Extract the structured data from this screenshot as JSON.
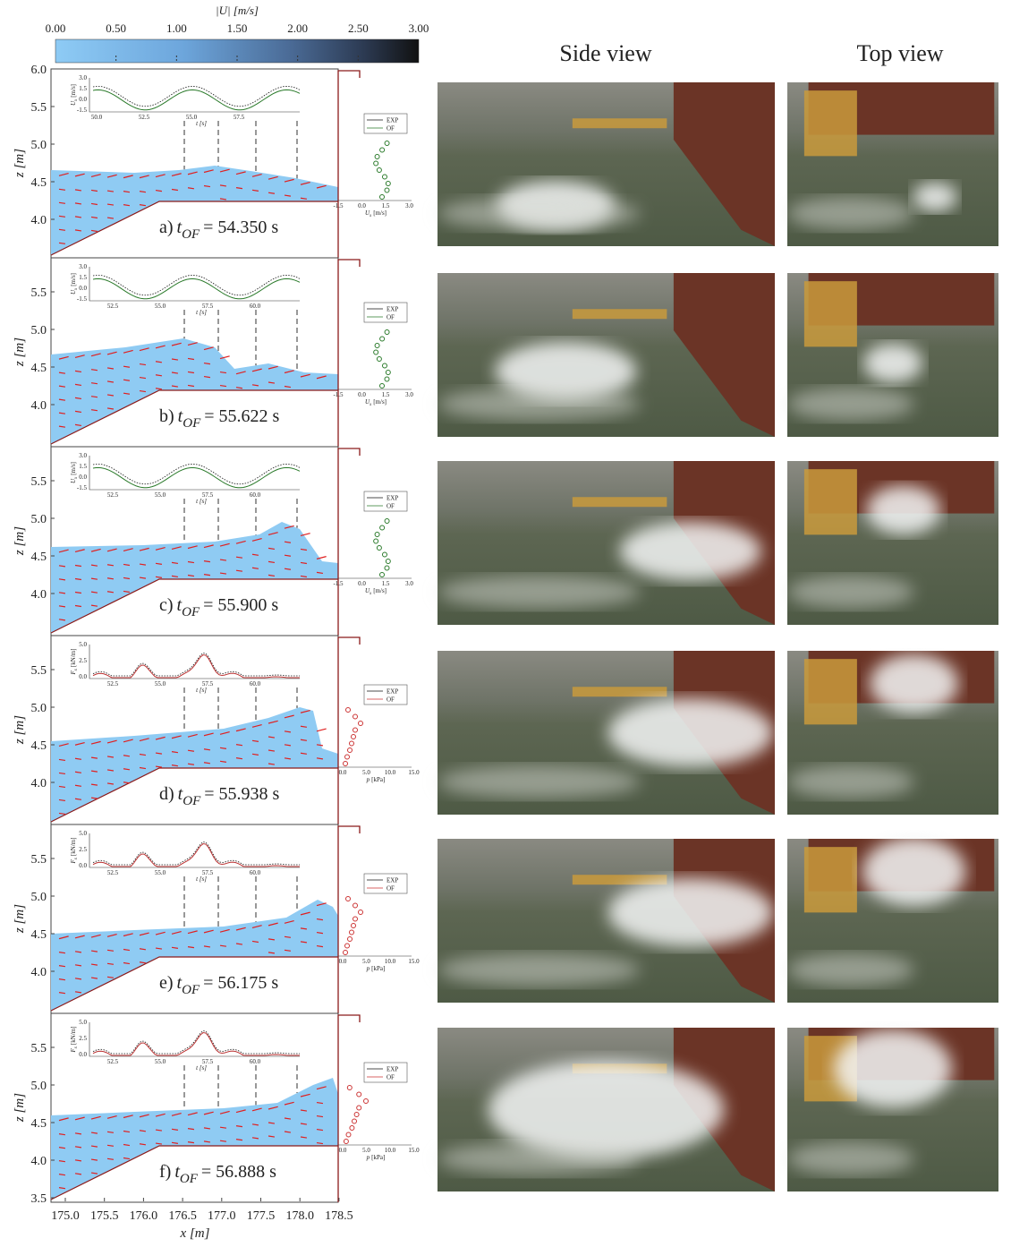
{
  "colorbar": {
    "label": "|U| [m/s]",
    "ticks": [
      "0.00",
      "0.50",
      "1.00",
      "1.50",
      "2.00",
      "2.50",
      "3.00"
    ]
  },
  "column_titles": [
    "Side view",
    "Top view"
  ],
  "axes": {
    "ylabel": "z [m]",
    "xlabel": "x [m]",
    "xticks": [
      "175.0",
      "175.5",
      "176.0",
      "176.5",
      "177.0",
      "177.5",
      "178.0",
      "178.5"
    ]
  },
  "panels": [
    {
      "caption": {
        "label": "a)",
        "symbol": "t",
        "sub": "OF",
        "time": "= 54.350 s"
      },
      "yticks": [
        "6.0",
        "5.5",
        "5.0",
        "4.5",
        "4.0"
      ],
      "inset": {
        "ylabel": {
          "symbol": "U",
          "sub": "x",
          "unit": "[m/s]"
        },
        "yticks": [
          "3.0",
          "1.5",
          "0.0",
          "-1.5"
        ],
        "xticks": [
          "50.0",
          "52.5",
          "55.0",
          "57.5"
        ],
        "xlabel": "t [s]"
      },
      "legend": [
        "EXP",
        "OF"
      ],
      "profile": {
        "xticks": [
          "-1.5",
          "0.0",
          "1.5",
          "3.0"
        ],
        "xlabel": {
          "symbol": "U",
          "sub": "x",
          "unit": "[m/s]"
        }
      }
    },
    {
      "caption": {
        "label": "b)",
        "symbol": "t",
        "sub": "OF",
        "time": "= 55.622 s"
      },
      "yticks": [
        "5.5",
        "5.0",
        "4.5",
        "4.0"
      ],
      "inset": {
        "ylabel": {
          "symbol": "U",
          "sub": "x",
          "unit": "[m/s]"
        },
        "yticks": [
          "3.0",
          "1.5",
          "0.0",
          "-1.5"
        ],
        "xticks": [
          "52.5",
          "55.0",
          "57.5",
          "60.0"
        ],
        "xlabel": "t [s]"
      },
      "legend": [
        "EXP",
        "OF"
      ],
      "profile": {
        "xticks": [
          "-1.5",
          "0.0",
          "1.5",
          "3.0"
        ],
        "xlabel": {
          "symbol": "U",
          "sub": "x",
          "unit": "[m/s]"
        }
      }
    },
    {
      "caption": {
        "label": "c)",
        "symbol": "t",
        "sub": "OF",
        "time": "= 55.900 s"
      },
      "yticks": [
        "5.5",
        "5.0",
        "4.5",
        "4.0"
      ],
      "inset": {
        "ylabel": {
          "symbol": "U",
          "sub": "x",
          "unit": "[m/s]"
        },
        "yticks": [
          "3.0",
          "1.5",
          "0.0",
          "-1.5"
        ],
        "xticks": [
          "52.5",
          "55.0",
          "57.5",
          "60.0"
        ],
        "xlabel": "t [s]"
      },
      "legend": [
        "EXP",
        "OF"
      ],
      "profile": {
        "xticks": [
          "-1.5",
          "0.0",
          "1.5",
          "3.0"
        ],
        "xlabel": {
          "symbol": "U",
          "sub": "x",
          "unit": "[m/s]"
        }
      }
    },
    {
      "caption": {
        "label": "d)",
        "symbol": "t",
        "sub": "OF",
        "time": "= 55.938 s"
      },
      "yticks": [
        "5.5",
        "5.0",
        "4.5",
        "4.0"
      ],
      "inset": {
        "ylabel": {
          "symbol": "F",
          "sub": "x",
          "unit": "[kN/m]"
        },
        "yticks": [
          "5.0",
          "2.5",
          "0.0"
        ],
        "xticks": [
          "52.5",
          "55.0",
          "57.5",
          "60.0"
        ],
        "xlabel": "t [s]"
      },
      "legend": [
        "EXP",
        "OF"
      ],
      "profile": {
        "xticks": [
          "0.0",
          "5.0",
          "10.0",
          "15.0"
        ],
        "xlabel": {
          "symbol": "p",
          "unit": "[kPa]"
        }
      }
    },
    {
      "caption": {
        "label": "e)",
        "symbol": "t",
        "sub": "OF",
        "time": "= 56.175 s"
      },
      "yticks": [
        "5.5",
        "5.0",
        "4.5",
        "4.0"
      ],
      "inset": {
        "ylabel": {
          "symbol": "F",
          "sub": "x",
          "unit": "[kN/m]"
        },
        "yticks": [
          "5.0",
          "2.5",
          "0.0"
        ],
        "xticks": [
          "52.5",
          "55.0",
          "57.5",
          "60.0"
        ],
        "xlabel": "t [s]"
      },
      "legend": [
        "EXP",
        "OF"
      ],
      "profile": {
        "xticks": [
          "0.0",
          "5.0",
          "10.0",
          "15.0"
        ],
        "xlabel": {
          "symbol": "p",
          "unit": "[kPa]"
        }
      }
    },
    {
      "caption": {
        "label": "f)",
        "symbol": "t",
        "sub": "OF",
        "time": "= 56.888 s"
      },
      "yticks": [
        "5.5",
        "5.0",
        "4.5",
        "4.0",
        "3.5"
      ],
      "inset": {
        "ylabel": {
          "symbol": "F",
          "sub": "x",
          "unit": "[kN/m]"
        },
        "yticks": [
          "5.0",
          "2.5",
          "0.0"
        ],
        "xticks": [
          "52.5",
          "55.0",
          "57.5",
          "60.0"
        ],
        "xlabel": "t [s]"
      },
      "legend": [
        "EXP",
        "OF"
      ],
      "profile": {
        "xticks": [
          "0.0",
          "5.0",
          "10.0",
          "15.0"
        ],
        "xlabel": {
          "symbol": "p",
          "unit": "[kPa]"
        }
      }
    }
  ]
}
